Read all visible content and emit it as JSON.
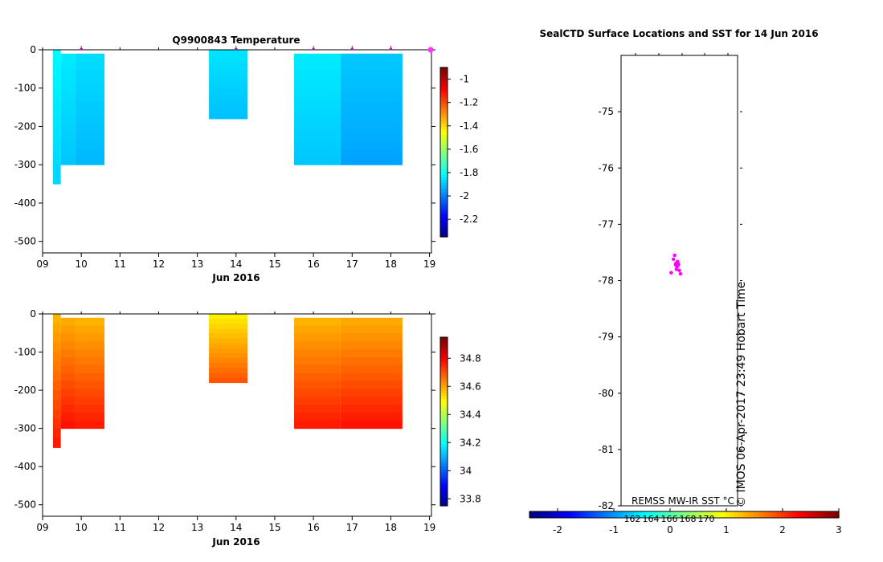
{
  "chart_data": [
    {
      "type": "heatmap",
      "title": "Q9900843  Temperature",
      "xlabel": "Jun 2016",
      "ylabel": "",
      "x_ticks": [
        "09",
        "10",
        "11",
        "12",
        "13",
        "14",
        "15",
        "16",
        "17",
        "18",
        "19"
      ],
      "y_ticks": [
        "0",
        "-100",
        "-200",
        "-300",
        "-400",
        "-500"
      ],
      "xlim": [
        9,
        19.05
      ],
      "ylim": [
        -530,
        0
      ],
      "profile_markers_day": [
        10.0,
        14.0,
        16.0,
        17.0,
        18.0
      ],
      "colorbar": {
        "min": -2.35,
        "max": -0.9,
        "ticks": [
          "-1",
          "-1.2",
          "-1.4",
          "-1.6",
          "-1.8",
          "-2",
          "-2.2"
        ],
        "tick_values": [
          -1,
          -1.2,
          -1.4,
          -1.6,
          -1.8,
          -2,
          -2.2
        ]
      },
      "cells": [
        {
          "x0": 9.27,
          "x1": 9.47,
          "d0": 0,
          "d1": 350,
          "v": -1.84
        },
        {
          "x0": 9.47,
          "x1": 9.85,
          "d0": 10,
          "d1": 300,
          "v": -1.86
        },
        {
          "x0": 9.85,
          "x1": 10.6,
          "d0": 10,
          "d1": 300,
          "v": -1.88
        },
        {
          "x0": 13.3,
          "x1": 14.3,
          "d0": 0,
          "d1": 180,
          "v": -1.87
        },
        {
          "x0": 15.5,
          "x1": 16.7,
          "d0": 10,
          "d1": 300,
          "v": -1.86
        },
        {
          "x0": 16.7,
          "x1": 18.3,
          "d0": 10,
          "d1": 300,
          "v": -1.91
        }
      ]
    },
    {
      "type": "heatmap",
      "title": "",
      "xlabel": "Jun 2016",
      "ylabel": "",
      "x_ticks": [
        "09",
        "10",
        "11",
        "12",
        "13",
        "14",
        "15",
        "16",
        "17",
        "18",
        "19"
      ],
      "y_ticks": [
        "0",
        "-100",
        "-200",
        "-300",
        "-400",
        "-500"
      ],
      "xlim": [
        9,
        19.05
      ],
      "ylim": [
        -530,
        0
      ],
      "colorbar": {
        "min": 33.75,
        "max": 34.95,
        "ticks": [
          "34.8",
          "34.6",
          "34.4",
          "34.2",
          "34",
          "33.8"
        ],
        "tick_values": [
          34.8,
          34.6,
          34.4,
          34.2,
          34.0,
          33.8
        ]
      },
      "cells": [
        {
          "x0": 9.27,
          "x1": 9.47,
          "d0": 0,
          "d1": 350,
          "v": 34.65
        },
        {
          "x0": 9.47,
          "x1": 9.85,
          "d0": 10,
          "d1": 300,
          "v": 34.66
        },
        {
          "x0": 9.85,
          "x1": 10.6,
          "d0": 10,
          "d1": 300,
          "v": 34.65
        },
        {
          "x0": 13.3,
          "x1": 14.3,
          "d0": 0,
          "d1": 180,
          "v": 34.58
        },
        {
          "x0": 15.5,
          "x1": 16.7,
          "d0": 10,
          "d1": 300,
          "v": 34.65
        },
        {
          "x0": 16.7,
          "x1": 18.3,
          "d0": 10,
          "d1": 300,
          "v": 34.66
        }
      ]
    },
    {
      "type": "scatter",
      "title": "SealCTD Surface Locations and SST for 14 Jun 2016",
      "xlabel": "",
      "ylabel": "",
      "y_ticks": [
        "-75",
        "-76",
        "-77",
        "-78",
        "-79",
        "-80",
        "-81",
        "-82"
      ],
      "ylim": [
        -82,
        -74
      ],
      "stamp": "© IMOS 06-Apr-2017 23:49 Hobart Time",
      "colorbar": {
        "label": "REMSS MW-IR SST °C",
        "min": -2.5,
        "max": 3,
        "ticks": [
          "-2",
          "-1",
          "0",
          "1",
          "2",
          "3"
        ],
        "tick_values": [
          -2,
          -1,
          0,
          1,
          2,
          3
        ],
        "longitude_labels": [
          "162",
          "164",
          "166",
          "168",
          "170"
        ]
      },
      "points": [
        {
          "x": 166.2,
          "y": -77.72
        },
        {
          "x": 166.3,
          "y": -77.76
        },
        {
          "x": 166.4,
          "y": -77.7
        },
        {
          "x": 166.1,
          "y": -77.55
        },
        {
          "x": 166.0,
          "y": -77.62
        },
        {
          "x": 166.5,
          "y": -77.82
        },
        {
          "x": 166.6,
          "y": -77.88
        },
        {
          "x": 165.8,
          "y": -77.86
        },
        {
          "x": 166.35,
          "y": -77.66
        },
        {
          "x": 166.25,
          "y": -77.8
        }
      ],
      "point_color": "#ff00ff"
    }
  ]
}
